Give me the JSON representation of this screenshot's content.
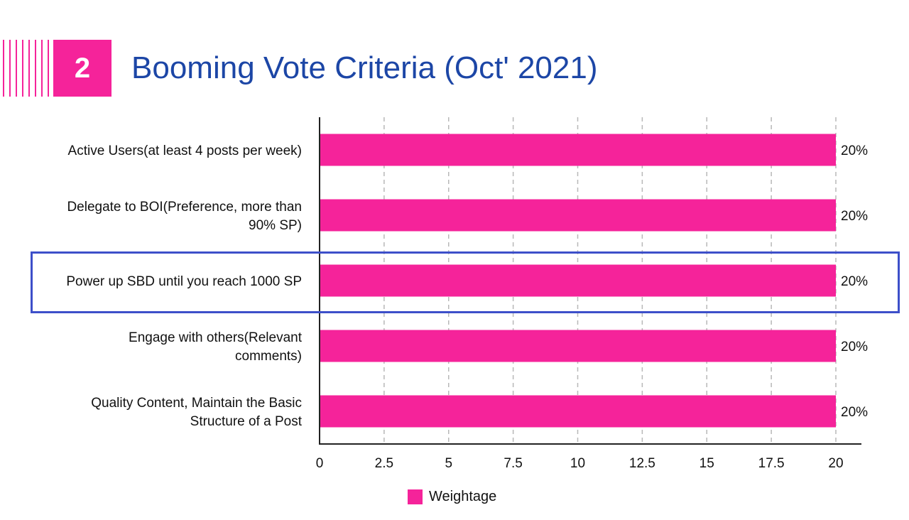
{
  "header": {
    "number": "2",
    "title": "Booming Vote Criteria (Oct' 2021)"
  },
  "colors": {
    "accent": "#f5239a",
    "title": "#1c46a6",
    "highlight": "#3d4fc9"
  },
  "chart_data": {
    "type": "bar",
    "orientation": "horizontal",
    "categories": [
      [
        "Active Users(at least 4 posts per week)"
      ],
      [
        "Delegate to BOI(Preference, more than",
        "90% SP)"
      ],
      [
        "Power up SBD until you reach 1000 SP"
      ],
      [
        "Engage with others(Relevant",
        "comments)"
      ],
      [
        "Quality Content, Maintain the Basic",
        "Structure of a Post"
      ]
    ],
    "series": [
      {
        "name": "Weightage",
        "values": [
          20,
          20,
          20,
          20,
          20
        ],
        "data_labels": [
          "20%",
          "20%",
          "20%",
          "20%",
          "20%"
        ]
      }
    ],
    "xlim": [
      0,
      21
    ],
    "xticks": [
      0,
      2.5,
      5,
      7.5,
      10,
      12.5,
      15,
      17.5,
      20
    ],
    "xtick_labels": [
      "0",
      "2.5",
      "5",
      "7.5",
      "10",
      "12.5",
      "15",
      "17.5",
      "20"
    ],
    "grid": "vertical dashed",
    "legend": "bottom-center",
    "highlighted_category_index": 2
  }
}
